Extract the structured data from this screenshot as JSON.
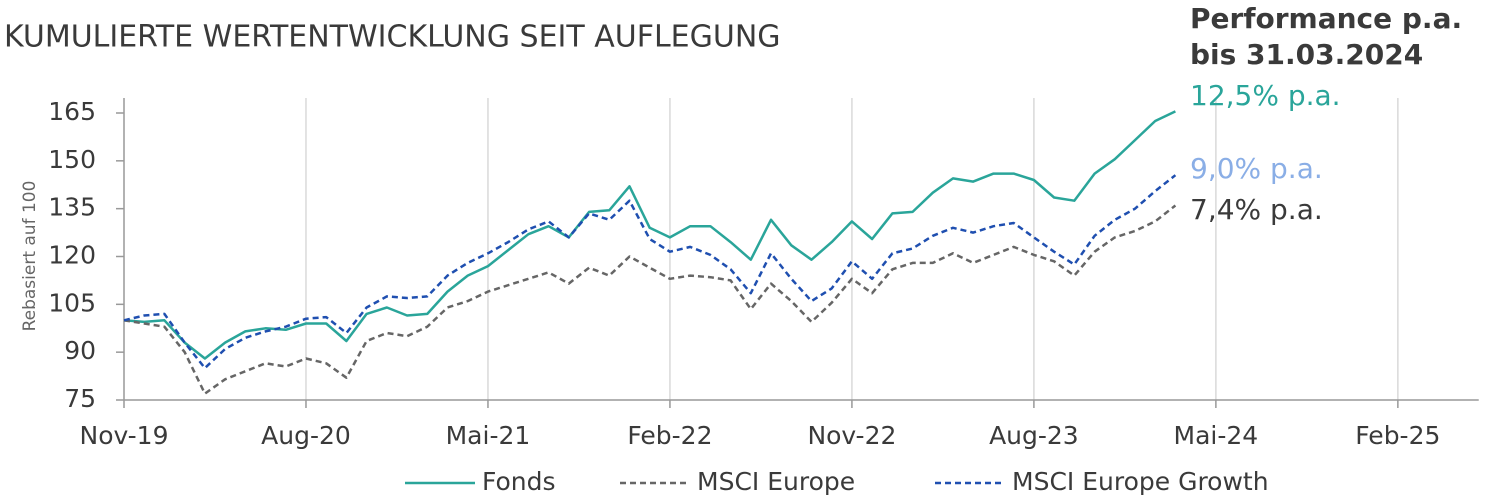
{
  "chart_data": {
    "type": "line",
    "title": "KUMULIERTE WERTENTWICKLUNG SEIT AUFLEGUNG",
    "ylabel": "Rebasiert auf 100",
    "categories": [
      "Nov-19",
      null,
      null,
      null,
      null,
      null,
      null,
      null,
      null,
      "Aug-20",
      null,
      null,
      null,
      null,
      null,
      null,
      null,
      null,
      "Mai-21",
      null,
      null,
      null,
      null,
      null,
      null,
      null,
      null,
      "Feb-22",
      null,
      null,
      null,
      null,
      null,
      null,
      null,
      null,
      "Nov-22",
      null,
      null,
      null,
      null,
      null,
      null,
      null,
      null,
      "Aug-23",
      null,
      null,
      null,
      null,
      null,
      null,
      null,
      null,
      "Mai-24",
      null,
      null,
      null,
      null,
      null,
      null,
      null,
      null,
      "Feb-25",
      null,
      null,
      null,
      null
    ],
    "ylim": [
      75,
      165
    ],
    "yticks": [
      75,
      90,
      105,
      120,
      135,
      150,
      165
    ],
    "series": [
      {
        "name": "Fonds",
        "color": "#2aa59a",
        "dash": false,
        "values": [
          100,
          99.5,
          100,
          93,
          88,
          93,
          96.5,
          97.5,
          97,
          99,
          99,
          93.5,
          102,
          104,
          101.5,
          102,
          109,
          114,
          117,
          122,
          127,
          129.5,
          126,
          134,
          134.5,
          142,
          129,
          126,
          129.5,
          129.5,
          124.5,
          119,
          131.5,
          123.5,
          119,
          124.5,
          131,
          125.5,
          133.5,
          134,
          140,
          144.5,
          143.5,
          146,
          146,
          144,
          138.5,
          137.5,
          146,
          150.5,
          156.5,
          162.5,
          165.5,
          null,
          null,
          null,
          null,
          null,
          null,
          null,
          null,
          null,
          null,
          null,
          null,
          null,
          null,
          null
        ]
      },
      {
        "name": "MSCI Europe",
        "color": "#666666",
        "dash": true,
        "values": [
          100,
          99,
          98,
          90,
          77,
          81.5,
          84,
          86.5,
          85.5,
          88,
          86.5,
          82,
          93.5,
          96,
          95,
          98,
          104,
          106,
          109,
          111,
          113,
          115,
          111.5,
          116.5,
          114,
          120,
          116.5,
          113,
          114,
          113.5,
          112.5,
          103.5,
          111.5,
          106,
          99.5,
          105.5,
          113,
          108.5,
          116,
          118,
          118,
          121,
          118,
          120.5,
          123,
          120.5,
          118.5,
          114,
          121.5,
          126,
          128,
          131,
          136,
          null,
          null,
          null,
          null,
          null,
          null,
          null,
          null,
          null,
          null,
          null,
          null,
          null,
          null,
          null
        ]
      },
      {
        "name": "MSCI Europe Growth",
        "color": "#1f4fb0",
        "dash": true,
        "values": [
          100,
          101.5,
          102,
          93,
          85,
          91,
          94.5,
          96.5,
          98,
          100.5,
          101,
          96,
          104,
          107.5,
          107,
          107.5,
          114,
          118,
          121,
          124.5,
          128.5,
          131,
          126,
          133.5,
          131.5,
          137.5,
          125.5,
          121.5,
          123,
          120.5,
          116,
          108.5,
          121,
          113,
          106,
          110,
          118.5,
          113,
          121,
          122.5,
          126.5,
          129,
          127.5,
          129.5,
          130.5,
          126,
          121.5,
          117.5,
          126.5,
          131.5,
          135,
          140.5,
          145.5,
          null,
          null,
          null,
          null,
          null,
          null,
          null,
          null,
          null,
          null,
          null,
          null,
          null,
          null,
          null
        ]
      }
    ],
    "annotations": [
      {
        "text": "Performance p.a.",
        "color": "#3a3a3a"
      },
      {
        "text": "bis 31.03.2024",
        "color": "#3a3a3a"
      },
      {
        "text": "12,5% p.a.",
        "color": "#2aa59a"
      },
      {
        "text": "9,0% p.a.",
        "color": "#8aaee6"
      },
      {
        "text": "7,4% p.a.",
        "color": "#3a3a3a"
      }
    ],
    "grid": "vertical",
    "legend": "bottom"
  }
}
